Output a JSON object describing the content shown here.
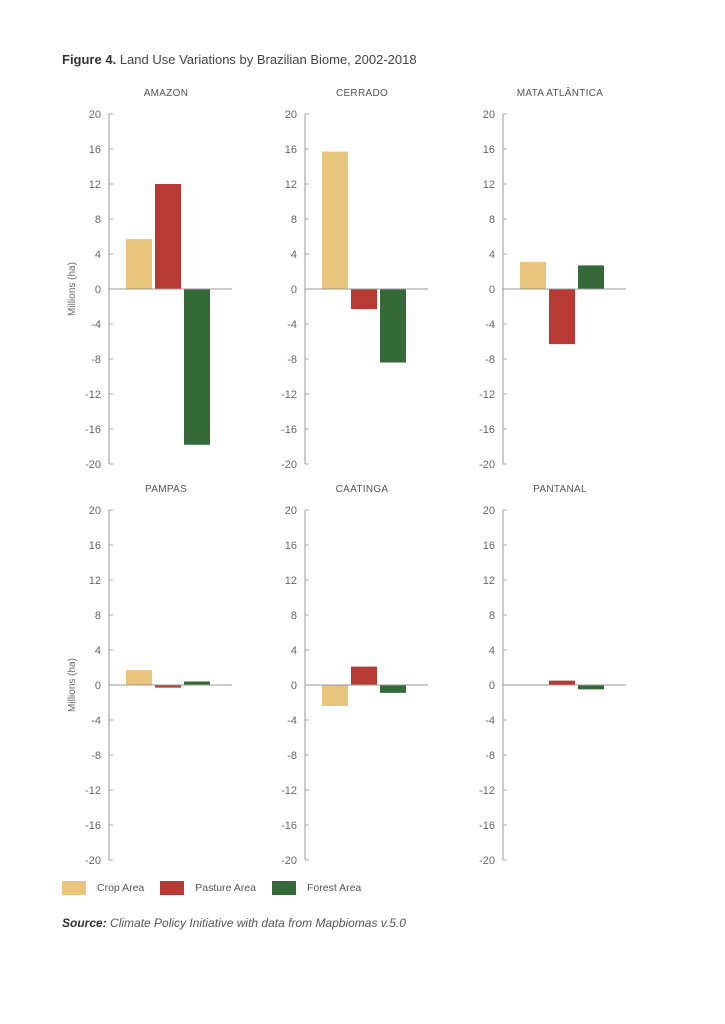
{
  "figure": {
    "label": "Figure 4.",
    "title": "Land Use Variations by Brazilian Biome, 2002-2018"
  },
  "legend": [
    {
      "name": "Crop Area",
      "color": "#E8C47C"
    },
    {
      "name": "Pasture Area",
      "color": "#B83A35"
    },
    {
      "name": "Forest Area",
      "color": "#356937"
    }
  ],
  "source": {
    "label": "Source:",
    "text": "Climate Policy Initiative with data from Mapbiomas v.5.0"
  },
  "chart_data": [
    {
      "type": "bar",
      "title": "AMAZON",
      "ylabel": "Millions (ha)",
      "ylim": [
        -20,
        20
      ],
      "yticks": [
        "20",
        "16",
        "12",
        "8",
        "4",
        "0",
        "-4",
        "-8",
        "-12",
        "-16",
        "-20"
      ],
      "categories": [
        "Crop Area",
        "Pasture Area",
        "Forest Area"
      ],
      "values": [
        5.7,
        12.0,
        -17.8
      ]
    },
    {
      "type": "bar",
      "title": "CERRADO",
      "ylabel": "",
      "ylim": [
        -20,
        20
      ],
      "yticks": [
        "20",
        "16",
        "12",
        "8",
        "4",
        "0",
        "-4",
        "-8",
        "-12",
        "-16",
        "-20"
      ],
      "categories": [
        "Crop Area",
        "Pasture Area",
        "Forest Area"
      ],
      "values": [
        15.7,
        -2.3,
        -8.4
      ]
    },
    {
      "type": "bar",
      "title": "MATA ATLÂNTICA",
      "ylabel": "",
      "ylim": [
        -20,
        20
      ],
      "yticks": [
        "20",
        "16",
        "12",
        "8",
        "4",
        "0",
        "-4",
        "-8",
        "-12",
        "-16",
        "-20"
      ],
      "categories": [
        "Crop Area",
        "Pasture Area",
        "Forest Area"
      ],
      "values": [
        3.1,
        -6.3,
        2.7
      ]
    },
    {
      "type": "bar",
      "title": "PAMPAS",
      "ylabel": "Millions (ha)",
      "ylim": [
        -20,
        20
      ],
      "yticks": [
        "20",
        "16",
        "12",
        "8",
        "4",
        "0",
        "-4",
        "-8",
        "-12",
        "-16",
        "-20"
      ],
      "categories": [
        "Crop Area",
        "Pasture Area",
        "Forest Area"
      ],
      "values": [
        1.7,
        -0.3,
        0.4
      ]
    },
    {
      "type": "bar",
      "title": "CAATINGA",
      "ylabel": "",
      "ylim": [
        -20,
        20
      ],
      "yticks": [
        "20",
        "16",
        "12",
        "8",
        "4",
        "0",
        "-4",
        "-8",
        "-12",
        "-16",
        "-20"
      ],
      "categories": [
        "Crop Area",
        "Pasture Area",
        "Forest Area"
      ],
      "values": [
        -2.4,
        2.1,
        -0.9
      ]
    },
    {
      "type": "bar",
      "title": "PANTANAL",
      "ylabel": "",
      "ylim": [
        -20,
        20
      ],
      "yticks": [
        "20",
        "16",
        "12",
        "8",
        "4",
        "0",
        "-4",
        "-8",
        "-12",
        "-16",
        "-20"
      ],
      "categories": [
        "Crop Area",
        "Pasture Area",
        "Forest Area"
      ],
      "values": [
        0.0,
        0.5,
        -0.5
      ]
    }
  ]
}
